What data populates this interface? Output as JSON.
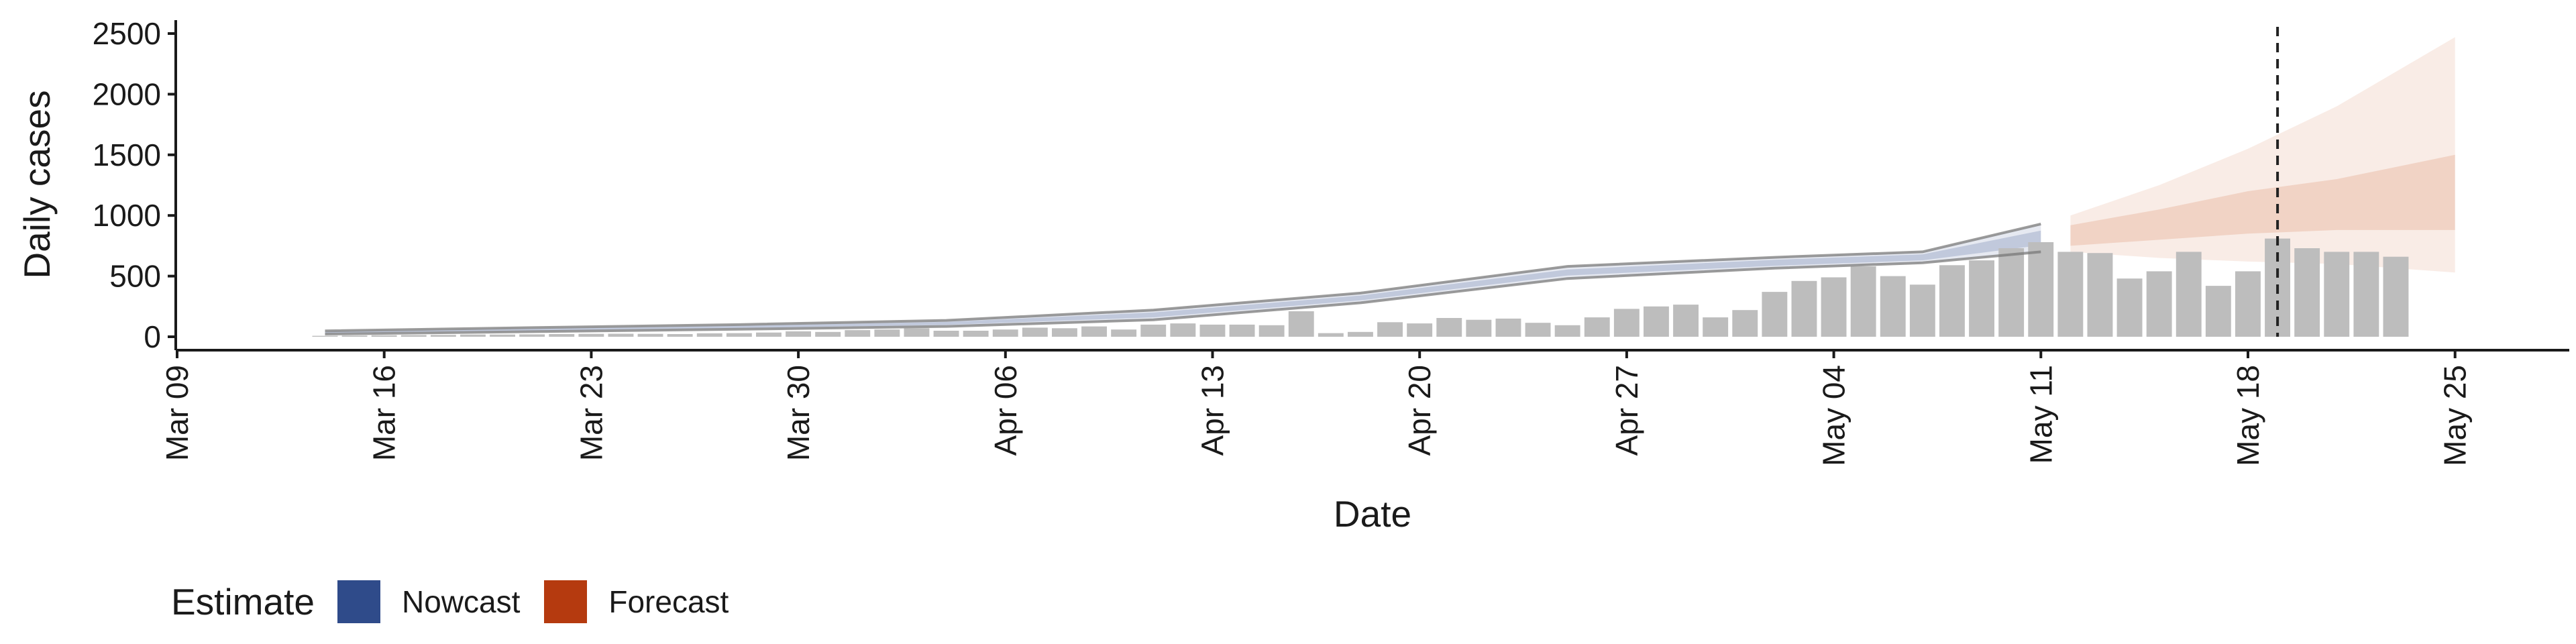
{
  "chart_data": {
    "type": "bar",
    "xlabel": "Date",
    "ylabel": "Daily cases",
    "ylim": [
      0,
      2500
    ],
    "yticks": [
      0,
      500,
      1000,
      1500,
      2000,
      2500
    ],
    "xlim": [
      "2020-03-09",
      "2020-05-25"
    ],
    "xticks": [
      "2020-03-09",
      "2020-03-16",
      "2020-03-23",
      "2020-03-30",
      "2020-04-06",
      "2020-04-13",
      "2020-04-20",
      "2020-04-27",
      "2020-05-04",
      "2020-05-11",
      "2020-05-18",
      "2020-05-25"
    ],
    "xtick_labels": [
      "Mar 09",
      "Mar 16",
      "Mar 23",
      "Mar 30",
      "Apr 06",
      "Apr 13",
      "Apr 20",
      "Apr 27",
      "May 04",
      "May 11",
      "May 18",
      "May 25"
    ],
    "reported_cases": {
      "start_date": "2020-03-14",
      "values": [
        8,
        10,
        12,
        14,
        15,
        18,
        18,
        20,
        22,
        24,
        25,
        24,
        22,
        28,
        30,
        35,
        45,
        40,
        55,
        60,
        70,
        50,
        50,
        60,
        75,
        70,
        85,
        60,
        100,
        110,
        100,
        100,
        95,
        210,
        30,
        40,
        120,
        110,
        155,
        140,
        150,
        115,
        95,
        160,
        230,
        250,
        265,
        160,
        220,
        370,
        460,
        490,
        580,
        500,
        430,
        590,
        630,
        730,
        780,
        700,
        690,
        480,
        540,
        700,
        420,
        540,
        810,
        730,
        700,
        700,
        660
      ]
    },
    "nowcast": {
      "start_date": "2020-03-14",
      "end_date": "2020-05-11",
      "points": [
        {
          "date": "2020-03-14",
          "lower90": 22,
          "upper90": 48,
          "lower50": 30,
          "upper50": 40
        },
        {
          "date": "2020-03-21",
          "lower90": 42,
          "upper90": 75,
          "lower50": 52,
          "upper50": 66
        },
        {
          "date": "2020-03-28",
          "lower90": 62,
          "upper90": 100,
          "lower50": 72,
          "upper50": 90
        },
        {
          "date": "2020-04-04",
          "lower90": 85,
          "upper90": 135,
          "lower50": 98,
          "upper50": 122
        },
        {
          "date": "2020-04-11",
          "lower90": 140,
          "upper90": 220,
          "lower50": 160,
          "upper50": 200
        },
        {
          "date": "2020-04-18",
          "lower90": 280,
          "upper90": 360,
          "lower50": 300,
          "upper50": 340
        },
        {
          "date": "2020-04-25",
          "lower90": 480,
          "upper90": 580,
          "lower50": 505,
          "upper50": 555
        },
        {
          "date": "2020-05-02",
          "lower90": 565,
          "upper90": 655,
          "lower50": 585,
          "upper50": 635
        },
        {
          "date": "2020-05-07",
          "lower90": 610,
          "upper90": 700,
          "lower50": 630,
          "upper50": 680
        },
        {
          "date": "2020-05-11",
          "lower90": 700,
          "upper90": 930,
          "lower50": 755,
          "upper50": 875
        }
      ]
    },
    "forecast": {
      "start_date": "2020-05-12",
      "end_date": "2020-05-25",
      "points": [
        {
          "date": "2020-05-12",
          "lower90": 700,
          "upper90": 1000,
          "lower50": 750,
          "upper50": 920
        },
        {
          "date": "2020-05-15",
          "lower90": 650,
          "upper90": 1250,
          "lower50": 800,
          "upper50": 1050
        },
        {
          "date": "2020-05-18",
          "lower90": 620,
          "upper90": 1550,
          "lower50": 850,
          "upper50": 1200
        },
        {
          "date": "2020-05-21",
          "lower90": 600,
          "upper90": 1900,
          "lower50": 880,
          "upper50": 1300
        },
        {
          "date": "2020-05-25",
          "lower90": 530,
          "upper90": 2470,
          "lower50": 880,
          "upper50": 1500
        }
      ]
    },
    "vline_date": "2020-05-19",
    "legend": {
      "title": "Estimate",
      "position": "bottom-left",
      "items": [
        {
          "label": "Nowcast",
          "color": "#2f4b8a"
        },
        {
          "label": "Forecast",
          "color": "#b53a0f"
        }
      ]
    },
    "colors": {
      "bars": "#bdbdbd",
      "nowcast_band": "#2f4b8a",
      "forecast_band": "#d87a50",
      "interval_lines": "#7a7a7a",
      "vline": "#222222"
    },
    "grid": false
  }
}
